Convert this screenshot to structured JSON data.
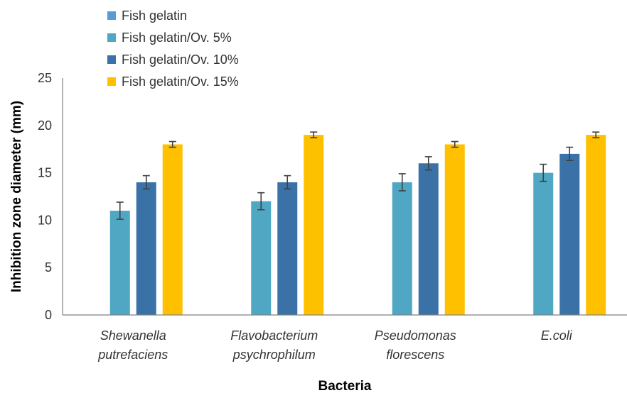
{
  "chart_data": {
    "type": "bar",
    "title": "",
    "xlabel": "Bacteria",
    "ylabel": "Inhibition zone diameter (mm)",
    "ylim": [
      0,
      25
    ],
    "yticks": [
      0,
      5,
      10,
      15,
      20,
      25
    ],
    "grid": false,
    "legend_position": "top-left",
    "categories": [
      [
        "Shewanella",
        "putrefaciens"
      ],
      [
        "Flavobacterium",
        "psychrophilum"
      ],
      [
        "Pseudomonas",
        "florescens"
      ],
      [
        "E.coli"
      ]
    ],
    "series": [
      {
        "name": "Fish gelatin",
        "color": "#5B9BD5",
        "values": [
          0,
          0,
          0,
          0
        ],
        "errors": [
          0,
          0,
          0,
          0
        ]
      },
      {
        "name": "Fish gelatin/Ov. 5%",
        "color": "#4FA7C4",
        "values": [
          11,
          12,
          14,
          15
        ],
        "errors": [
          0.9,
          0.9,
          0.9,
          0.9
        ]
      },
      {
        "name": "Fish gelatin/Ov. 10%",
        "color": "#3A72A8",
        "values": [
          14,
          14,
          16,
          17
        ],
        "errors": [
          0.7,
          0.7,
          0.7,
          0.7
        ]
      },
      {
        "name": "Fish gelatin/Ov. 15%",
        "color": "#FFC000",
        "values": [
          18,
          19,
          18,
          19
        ],
        "errors": [
          0.3,
          0.3,
          0.3,
          0.3
        ]
      }
    ]
  }
}
